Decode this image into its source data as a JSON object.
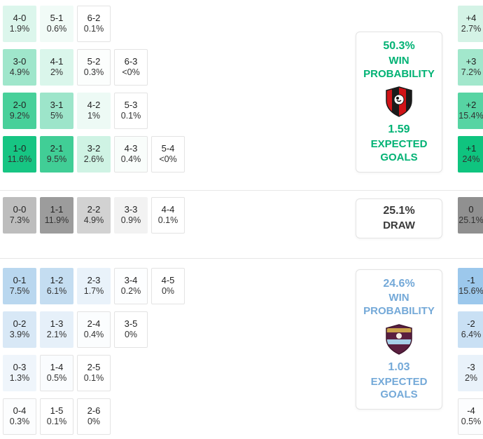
{
  "chart_data": {
    "type": "heatmap",
    "home": {
      "accent": "#00B274",
      "rows": [
        [
          {
            "score": "4-0",
            "pct": "1.9%",
            "bg": "#DCF6EC"
          },
          {
            "score": "5-1",
            "pct": "0.6%",
            "bg": "#F1FBF7"
          },
          {
            "score": "6-2",
            "pct": "0.1%",
            "bg": "#FFFFFF"
          }
        ],
        [
          {
            "score": "3-0",
            "pct": "4.9%",
            "bg": "#9FE6CB"
          },
          {
            "score": "4-1",
            "pct": "2%",
            "bg": "#DAF6EB"
          },
          {
            "score": "5-2",
            "pct": "0.3%",
            "bg": "#FCFEFD"
          },
          {
            "score": "6-3",
            "pct": "<0%",
            "bg": "#FFFFFF"
          }
        ],
        [
          {
            "score": "2-0",
            "pct": "9.2%",
            "bg": "#48D09A"
          },
          {
            "score": "3-1",
            "pct": "5%",
            "bg": "#9DE5CA"
          },
          {
            "score": "4-2",
            "pct": "1%",
            "bg": "#EDFAF5"
          },
          {
            "score": "5-3",
            "pct": "0.1%",
            "bg": "#FFFFFF"
          }
        ],
        [
          {
            "score": "1-0",
            "pct": "11.6%",
            "bg": "#17C583"
          },
          {
            "score": "2-1",
            "pct": "9.5%",
            "bg": "#41CE96"
          },
          {
            "score": "3-2",
            "pct": "2.6%",
            "bg": "#CFF3E4"
          },
          {
            "score": "4-3",
            "pct": "0.4%",
            "bg": "#F9FDFB"
          },
          {
            "score": "5-4",
            "pct": "<0%",
            "bg": "#FFFFFF"
          }
        ]
      ],
      "goal_diff": [
        {
          "label": "+4",
          "pct": "2.7%",
          "bg": "#D4F3E6"
        },
        {
          "label": "+3",
          "pct": "7.2%",
          "bg": "#A2E7CC"
        },
        {
          "label": "+2",
          "pct": "15.4%",
          "bg": "#57D4A3"
        },
        {
          "label": "+1",
          "pct": "24%",
          "bg": "#0FC47F"
        }
      ],
      "summary": {
        "win_pct": "50.3%",
        "win_label_line1": "WIN",
        "win_label_line2": "PROBABILITY",
        "expected_goals": "1.59",
        "xg_label_line1": "EXPECTED",
        "xg_label_line2": "GOALS"
      }
    },
    "draw": {
      "accent": "#8F8F8F",
      "rows": [
        [
          {
            "score": "0-0",
            "pct": "7.3%",
            "bg": "#BDBDBD"
          },
          {
            "score": "1-1",
            "pct": "11.9%",
            "bg": "#9C9C9C"
          },
          {
            "score": "2-2",
            "pct": "4.9%",
            "bg": "#D2D2D2"
          },
          {
            "score": "3-3",
            "pct": "0.9%",
            "bg": "#F2F2F2"
          },
          {
            "score": "4-4",
            "pct": "0.1%",
            "bg": "#FFFFFF"
          }
        ]
      ],
      "goal_diff": {
        "label": "0",
        "pct": "25.1%",
        "bg": "#909090"
      },
      "summary": {
        "pct": "25.1%",
        "label": "DRAW"
      }
    },
    "away": {
      "accent": "#74A9D8",
      "rows": [
        [
          {
            "score": "0-1",
            "pct": "7.5%",
            "bg": "#B9D7EF"
          },
          {
            "score": "1-2",
            "pct": "6.1%",
            "bg": "#C4DDF1"
          },
          {
            "score": "2-3",
            "pct": "1.7%",
            "bg": "#E9F2FA"
          },
          {
            "score": "3-4",
            "pct": "0.2%",
            "bg": "#FDFEFF"
          },
          {
            "score": "4-5",
            "pct": "0%",
            "bg": "#FFFFFF"
          }
        ],
        [
          {
            "score": "0-2",
            "pct": "3.9%",
            "bg": "#D8E8F6"
          },
          {
            "score": "1-3",
            "pct": "2.1%",
            "bg": "#E6F0F9"
          },
          {
            "score": "2-4",
            "pct": "0.4%",
            "bg": "#FBFDFE"
          },
          {
            "score": "3-5",
            "pct": "0%",
            "bg": "#FFFFFF"
          }
        ],
        [
          {
            "score": "0-3",
            "pct": "1.3%",
            "bg": "#EFF5FB"
          },
          {
            "score": "1-4",
            "pct": "0.5%",
            "bg": "#FAFCFE"
          },
          {
            "score": "2-5",
            "pct": "0.1%",
            "bg": "#FFFFFF"
          }
        ],
        [
          {
            "score": "0-4",
            "pct": "0.3%",
            "bg": "#FCFDFE"
          },
          {
            "score": "1-5",
            "pct": "0.1%",
            "bg": "#FFFFFF"
          },
          {
            "score": "2-6",
            "pct": "0%",
            "bg": "#FFFFFF"
          }
        ]
      ],
      "goal_diff": [
        {
          "label": "-1",
          "pct": "15.6%",
          "bg": "#9CC8EC"
        },
        {
          "label": "-2",
          "pct": "6.4%",
          "bg": "#C9E0F4"
        },
        {
          "label": "-3",
          "pct": "2%",
          "bg": "#E9F2FA"
        },
        {
          "label": "-4",
          "pct": "0.5%",
          "bg": "#FCFDFE"
        }
      ],
      "summary": {
        "win_pct": "24.6%",
        "win_label_line1": "WIN",
        "win_label_line2": "PROBABILITY",
        "expected_goals": "1.03",
        "xg_label_line1": "EXPECTED",
        "xg_label_line2": "GOALS"
      }
    }
  }
}
